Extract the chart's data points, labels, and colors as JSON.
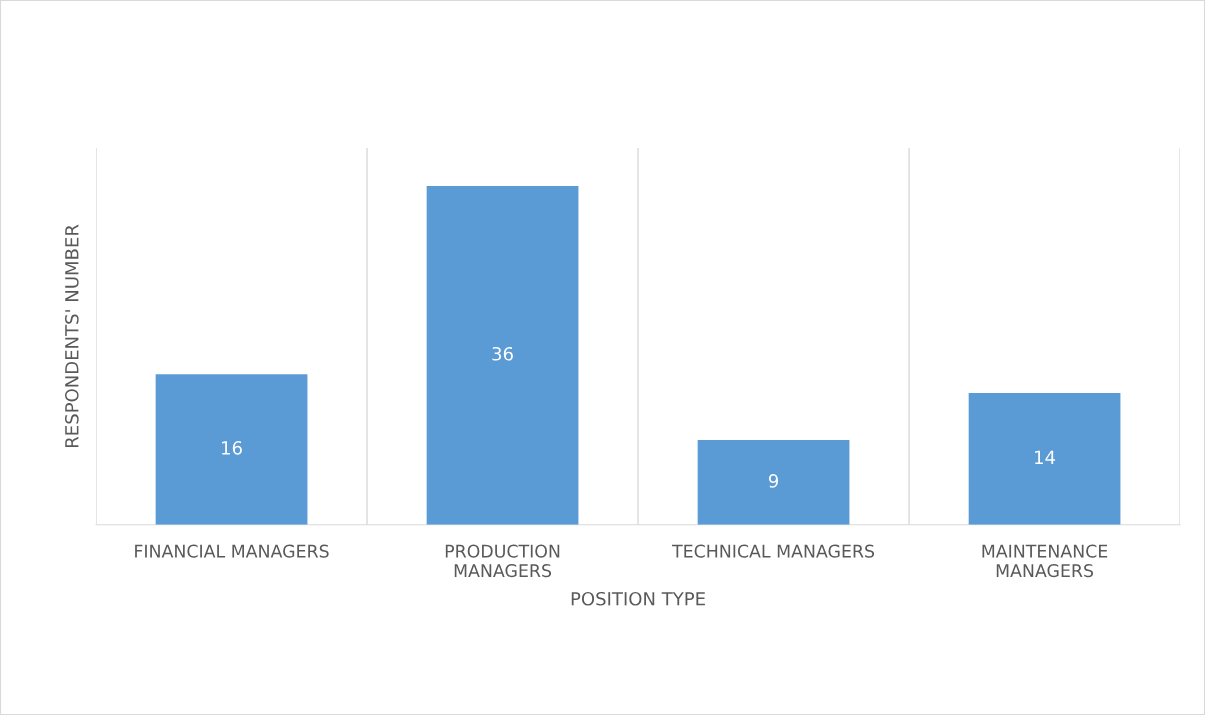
{
  "chart_data": {
    "type": "bar",
    "xlabel": "POSITION TYPE",
    "ylabel": "RESPONDENTS' NUMBER",
    "categories": [
      "FINANCIAL MANAGERS",
      "PRODUCTION\nMANAGERS",
      "TECHNICAL MANAGERS",
      "MAINTENANCE\nMANAGERS"
    ],
    "values": [
      16,
      36,
      9,
      14
    ],
    "color": "#5b9bd5",
    "data_labels": true,
    "grid": "x",
    "legend": false
  }
}
